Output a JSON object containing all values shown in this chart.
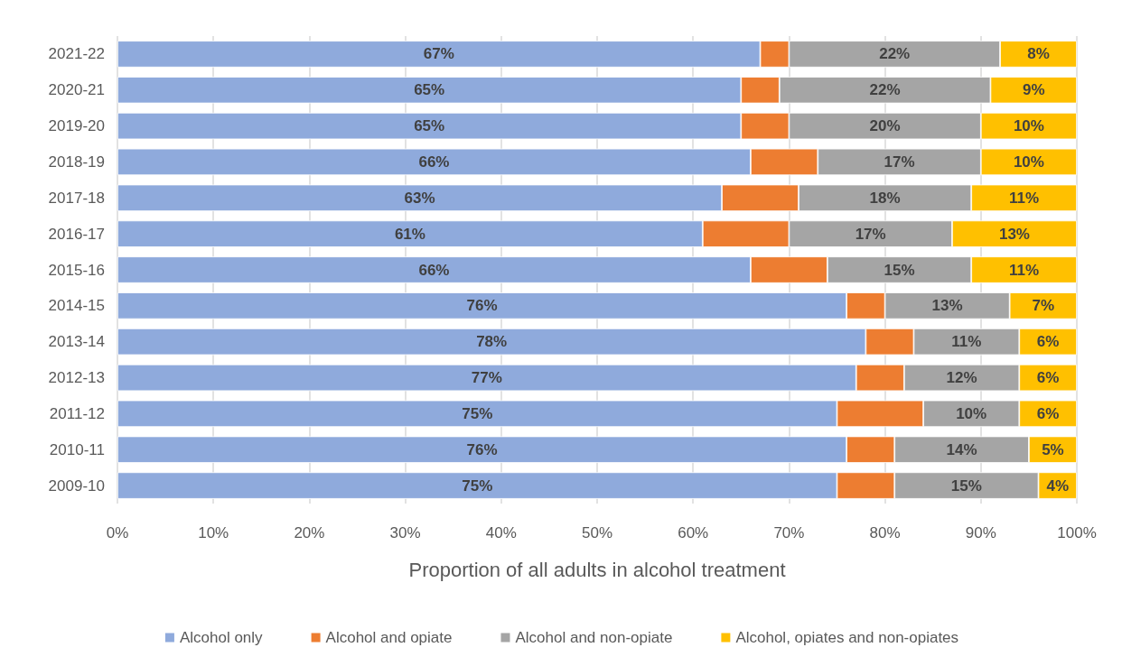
{
  "chart_data": {
    "type": "bar",
    "orientation": "horizontal",
    "stacked": true,
    "xlabel": "Proportion of all adults in alcohol treatment",
    "categories": [
      "2021-22",
      "2020-21",
      "2019-20",
      "2018-19",
      "2017-18",
      "2016-17",
      "2015-16",
      "2014-15",
      "2013-14",
      "2012-13",
      "2011-12",
      "2010-11",
      "2009-10"
    ],
    "series": [
      {
        "name": "Alcohol only",
        "color": "#8faadc",
        "values": [
          67,
          65,
          65,
          66,
          63,
          61,
          66,
          76,
          78,
          77,
          75,
          76,
          75
        ],
        "value_labels": [
          "67%",
          "65%",
          "65%",
          "66%",
          "63%",
          "61%",
          "66%",
          "76%",
          "78%",
          "77%",
          "75%",
          "76%",
          "75%"
        ]
      },
      {
        "name": "Alcohol and opiate",
        "color": "#ed7d31",
        "values": [
          3,
          4,
          5,
          7,
          8,
          9,
          8,
          4,
          5,
          5,
          9,
          5,
          6
        ]
      },
      {
        "name": "Alcohol and non-opiate",
        "color": "#a5a5a5",
        "values": [
          22,
          22,
          20,
          17,
          18,
          17,
          15,
          13,
          11,
          12,
          10,
          14,
          15
        ],
        "value_labels": [
          "22%",
          "22%",
          "20%",
          "17%",
          "18%",
          "17%",
          "15%",
          "13%",
          "11%",
          "12%",
          "10%",
          "14%",
          "15%"
        ]
      },
      {
        "name": "Alcohol, opiates and non-opiates",
        "color": "#ffc000",
        "values": [
          8,
          9,
          10,
          10,
          11,
          13,
          11,
          7,
          6,
          6,
          6,
          5,
          4
        ],
        "value_labels": [
          "8%",
          "9%",
          "10%",
          "10%",
          "11%",
          "13%",
          "11%",
          "7%",
          "6%",
          "6%",
          "6%",
          "5%",
          "4%"
        ]
      }
    ],
    "xlim": [
      0,
      100
    ],
    "xticks": [
      {
        "value": 0,
        "label": "0%"
      },
      {
        "value": 10,
        "label": "10%"
      },
      {
        "value": 20,
        "label": "20%"
      },
      {
        "value": 30,
        "label": "30%"
      },
      {
        "value": 40,
        "label": "40%"
      },
      {
        "value": 50,
        "label": "50%"
      },
      {
        "value": 60,
        "label": "60%"
      },
      {
        "value": 70,
        "label": "70%"
      },
      {
        "value": 80,
        "label": "80%"
      },
      {
        "value": 90,
        "label": "90%"
      },
      {
        "value": 100,
        "label": "100%"
      }
    ],
    "grid": "x",
    "legend": "bottom"
  }
}
